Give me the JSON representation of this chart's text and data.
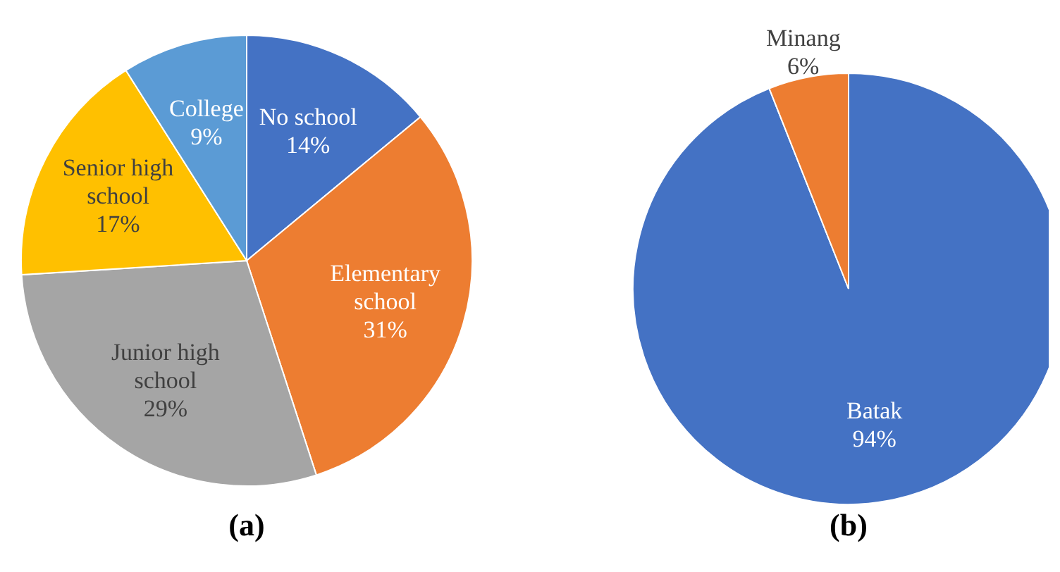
{
  "chart_data": [
    {
      "type": "pie",
      "title": "(a)",
      "categories": [
        "No school",
        "Elementary school",
        "Junior high school",
        "Senior high school",
        "College"
      ],
      "values": [
        14,
        31,
        29,
        17,
        9
      ],
      "colors": [
        "#4472c4",
        "#ed7d31",
        "#a5a5a5",
        "#ffc000",
        "#5b9bd5"
      ],
      "value_labels": [
        "14%",
        "31%",
        "29%",
        "17%",
        "9%"
      ],
      "legend": false
    },
    {
      "type": "pie",
      "title": "(b)",
      "categories": [
        "Batak",
        "Minang"
      ],
      "values": [
        94,
        6
      ],
      "colors": [
        "#4472c4",
        "#ed7d31"
      ],
      "value_labels": [
        "94%",
        "6%"
      ],
      "legend": false
    }
  ]
}
